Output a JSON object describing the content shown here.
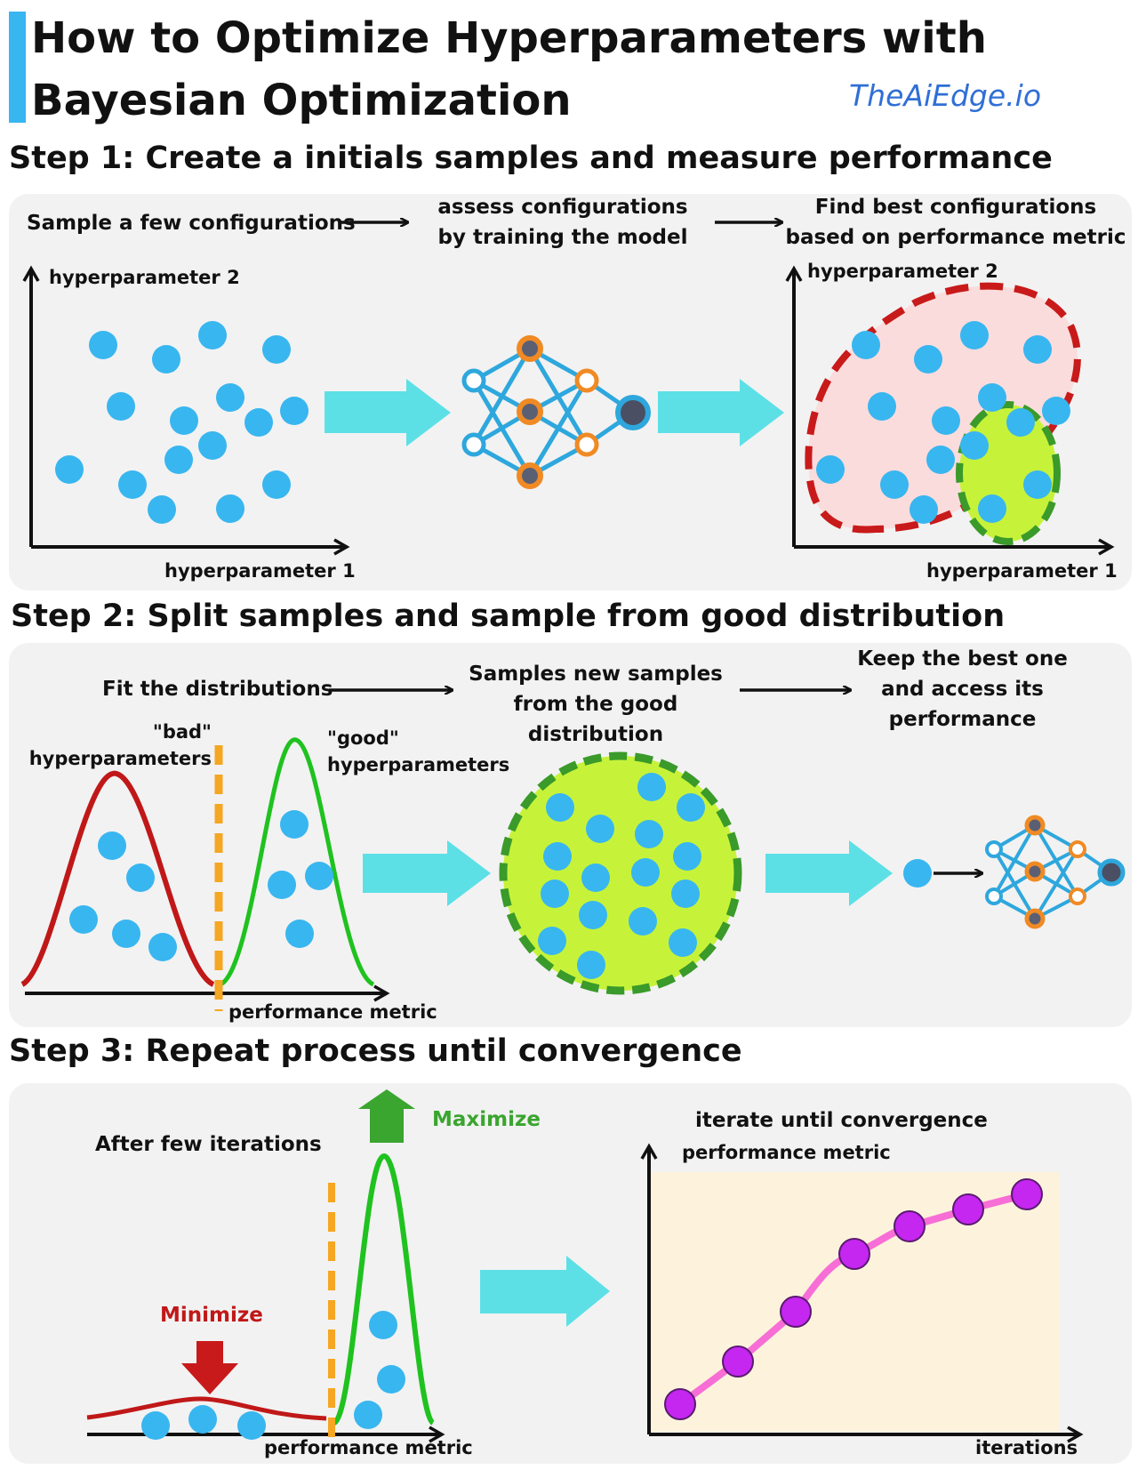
{
  "header": {
    "title": "How to Optimize Hyperparameters with Bayesian Optimization",
    "brand": "TheAiEdge.io"
  },
  "step1": {
    "heading": "Step 1: Create a initials samples and measure performance",
    "flow": [
      "Sample a few configurations",
      "assess configurations by training the model",
      "Find best configurations based on performance metric"
    ],
    "left_plot": {
      "y_label": "hyperparameter 2",
      "x_label": "hyperparameter 1"
    },
    "right_plot": {
      "y_label": "hyperparameter 2",
      "x_label": "hyperparameter 1"
    }
  },
  "step2": {
    "heading": "Step 2: Split samples and sample from good distribution",
    "flow": [
      "Fit  the distributions",
      "Samples new samples from the good distribution",
      "Keep the best one and access its performance"
    ],
    "bad_label": "\"bad\" hyperparameters",
    "good_label": "\"good\" hyperparameters",
    "x_label": "performance metric"
  },
  "step3": {
    "heading": "Step 3: Repeat process until convergence",
    "after_label": "After few iterations",
    "maximize": "Maximize",
    "minimize": "Minimize",
    "x_label": "performance metric",
    "chart_title": "iterate until convergence",
    "chart_y_label": "performance metric",
    "chart_x_label": "iterations"
  },
  "colors": {
    "accent_bar": "#38b6f0",
    "dot": "#38b6f0",
    "arrow": "#5ce0e6",
    "bad_region": "#c01818",
    "good_region": "#c6f33a",
    "good_border": "#3a9a2a",
    "orange": "#f5a623",
    "curve_pink": "#f76ed6",
    "point_purple": "#c526f0"
  }
}
